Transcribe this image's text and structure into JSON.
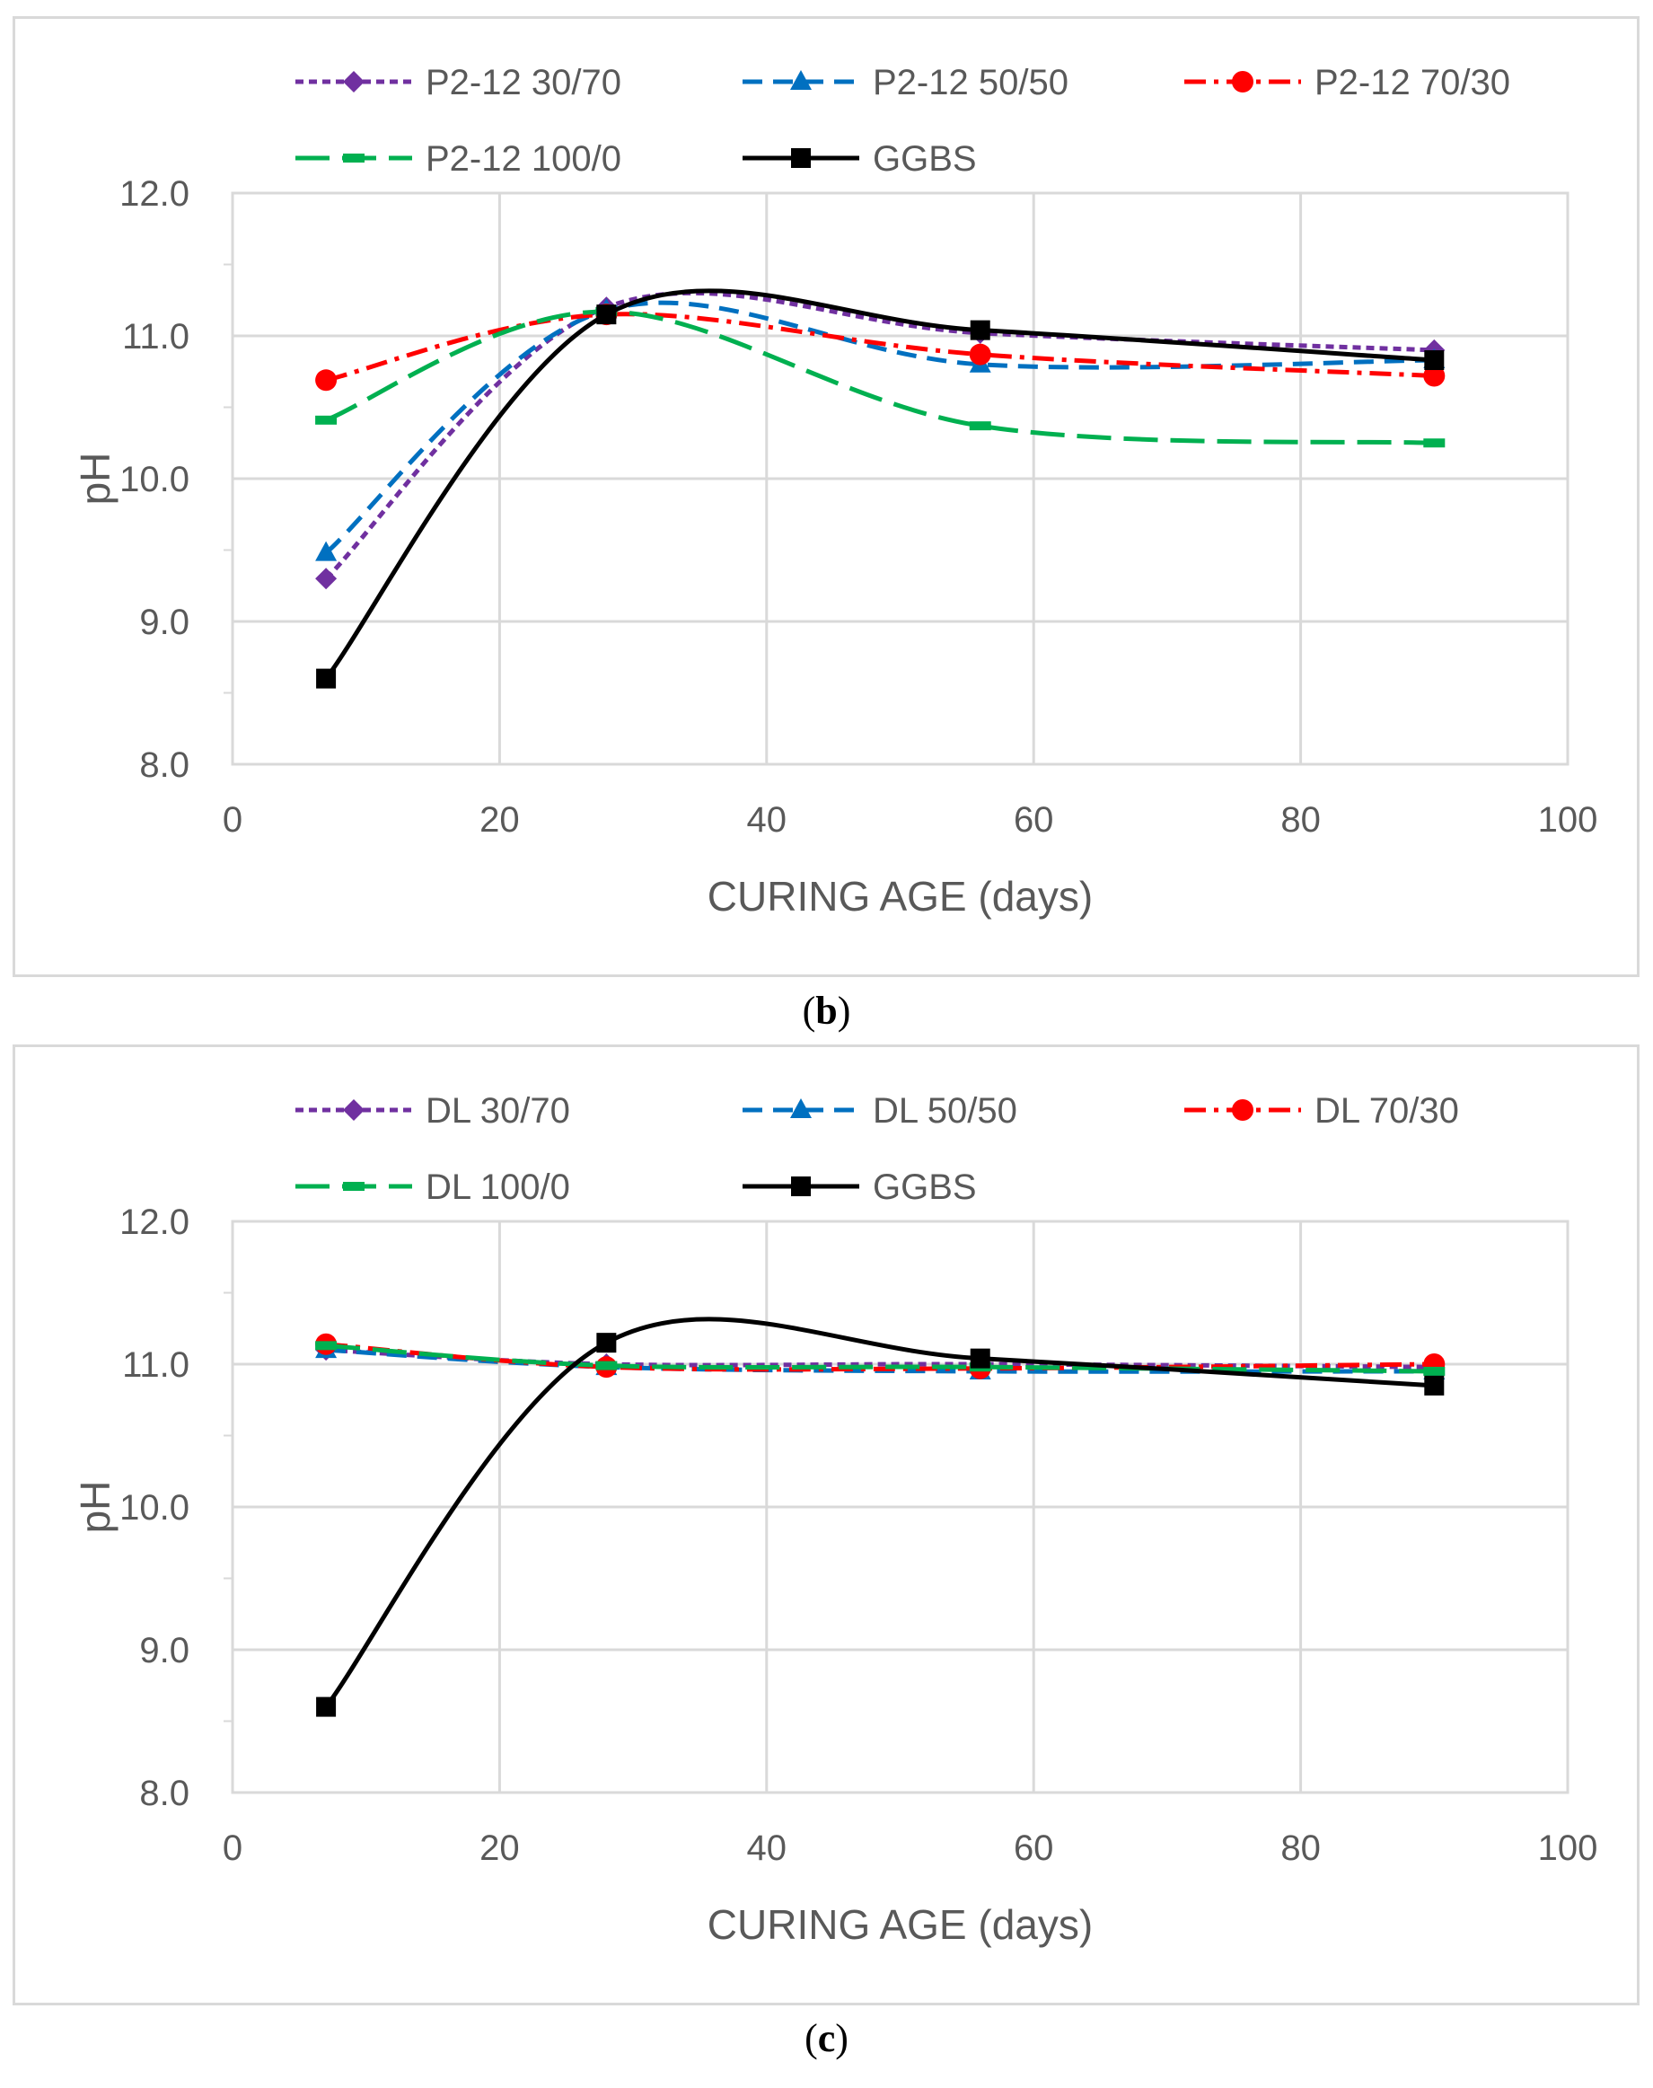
{
  "chart_data": [
    {
      "type": "line",
      "panel": "b",
      "caption_letter": "b",
      "title": "",
      "xlabel": "CURING AGE (days)",
      "ylabel": "pH",
      "xlim": [
        0,
        100
      ],
      "ylim": [
        8.0,
        12.0
      ],
      "xticks": [
        "0",
        "20",
        "40",
        "60",
        "80",
        "100"
      ],
      "yticks": [
        "8.0",
        "9.0",
        "10.0",
        "11.0",
        "12.0"
      ],
      "grid": true,
      "legend_position": "top",
      "x": [
        7,
        28,
        56,
        90
      ],
      "series": [
        {
          "name": "P2-12 30/70",
          "values": [
            9.3,
            11.2,
            11.02,
            10.9
          ],
          "color": "#7030a0",
          "dash": "short-dash",
          "marker": "diamond",
          "smooth": true
        },
        {
          "name": "P2-12 50/50",
          "values": [
            9.48,
            11.18,
            10.8,
            10.83
          ],
          "color": "#0070c0",
          "dash": "dash",
          "marker": "triangle",
          "smooth": true
        },
        {
          "name": "P2-12 70/30",
          "values": [
            10.69,
            11.15,
            10.87,
            10.72
          ],
          "color": "#ff0000",
          "dash": "dash-dot",
          "marker": "circle",
          "smooth": true
        },
        {
          "name": "P2-12 100/0",
          "values": [
            10.41,
            11.17,
            10.37,
            10.25
          ],
          "color": "#00b050",
          "dash": "long-dash",
          "marker": "dash",
          "smooth": true
        },
        {
          "name": "GGBS",
          "values": [
            8.6,
            11.15,
            11.04,
            10.83
          ],
          "color": "#000000",
          "dash": "solid",
          "marker": "square",
          "smooth": true
        }
      ]
    },
    {
      "type": "line",
      "panel": "c",
      "caption_letter": "c",
      "title": "",
      "xlabel": "CURING AGE (days)",
      "ylabel": "pH",
      "xlim": [
        0,
        100
      ],
      "ylim": [
        8.0,
        12.0
      ],
      "xticks": [
        "0",
        "20",
        "40",
        "60",
        "80",
        "100"
      ],
      "yticks": [
        "8.0",
        "9.0",
        "10.0",
        "11.0",
        "12.0"
      ],
      "grid": true,
      "legend_position": "top",
      "x": [
        7,
        28,
        56,
        90
      ],
      "series": [
        {
          "name": "DL 30/70",
          "values": [
            11.1,
            11.0,
            11.0,
            10.98
          ],
          "color": "#7030a0",
          "dash": "short-dash",
          "marker": "diamond",
          "smooth": true
        },
        {
          "name": "DL 50/50",
          "values": [
            11.1,
            10.98,
            10.95,
            10.95
          ],
          "color": "#0070c0",
          "dash": "dash",
          "marker": "triangle",
          "smooth": true
        },
        {
          "name": "DL 70/30",
          "values": [
            11.14,
            10.98,
            10.97,
            11.0
          ],
          "color": "#ff0000",
          "dash": "dash-dot",
          "marker": "circle",
          "smooth": true
        },
        {
          "name": "DL 100/0",
          "values": [
            11.13,
            10.99,
            10.98,
            10.95
          ],
          "color": "#00b050",
          "dash": "long-dash",
          "marker": "dash",
          "smooth": true
        },
        {
          "name": "GGBS",
          "values": [
            8.6,
            11.15,
            11.04,
            10.85
          ],
          "color": "#000000",
          "dash": "solid",
          "marker": "square",
          "smooth": true
        }
      ]
    }
  ]
}
